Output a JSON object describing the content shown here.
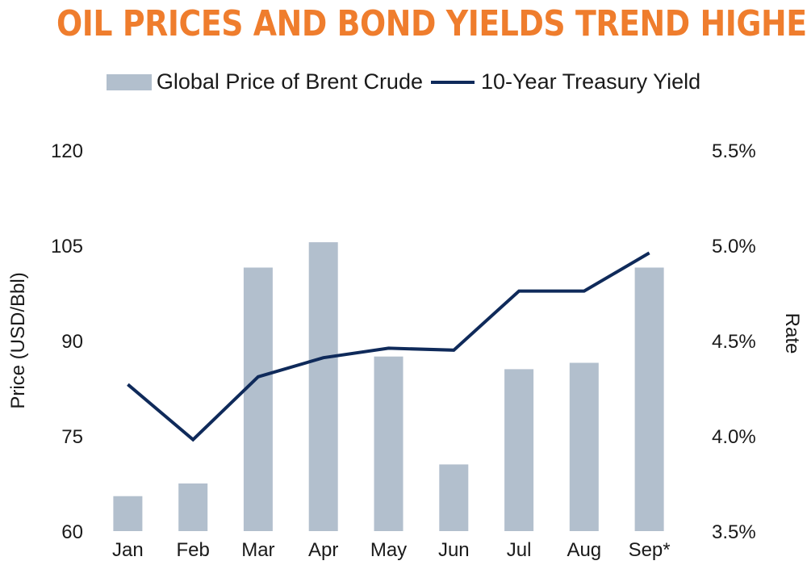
{
  "chart_data": {
    "type": "bar",
    "title": "OIL PRICES AND BOND YIELDS TREND HIGHER",
    "categories": [
      "Jan",
      "Feb",
      "Mar",
      "Apr",
      "May",
      "Jun",
      "Jul",
      "Aug",
      "Sep*"
    ],
    "series": [
      {
        "name": "Global Price of Brent Crude",
        "type": "bar",
        "axis": "left",
        "values": [
          65.5,
          67.5,
          101.5,
          105.5,
          87.5,
          70.5,
          85.5,
          86.5,
          101.5
        ]
      },
      {
        "name": "10-Year Treasury Yield",
        "type": "line",
        "axis": "right",
        "values": [
          4.27,
          3.98,
          4.31,
          4.41,
          4.46,
          4.45,
          4.76,
          4.76,
          4.96
        ]
      }
    ],
    "ylabel": "Price (USD/Bbl)",
    "y2label": "Rate",
    "ylim": [
      60,
      120
    ],
    "y2lim": [
      3.5,
      5.5
    ],
    "yticks": [
      "120",
      "105",
      "90",
      "75",
      "60"
    ],
    "y2ticks": [
      "5.5%",
      "5.0%",
      "4.5%",
      "4.0%",
      "3.5%"
    ],
    "legend_position": "top",
    "grid": false,
    "colors": {
      "title": "#ef7d2d",
      "bar": "#b2bfcd",
      "line": "#0f2a5a"
    }
  }
}
